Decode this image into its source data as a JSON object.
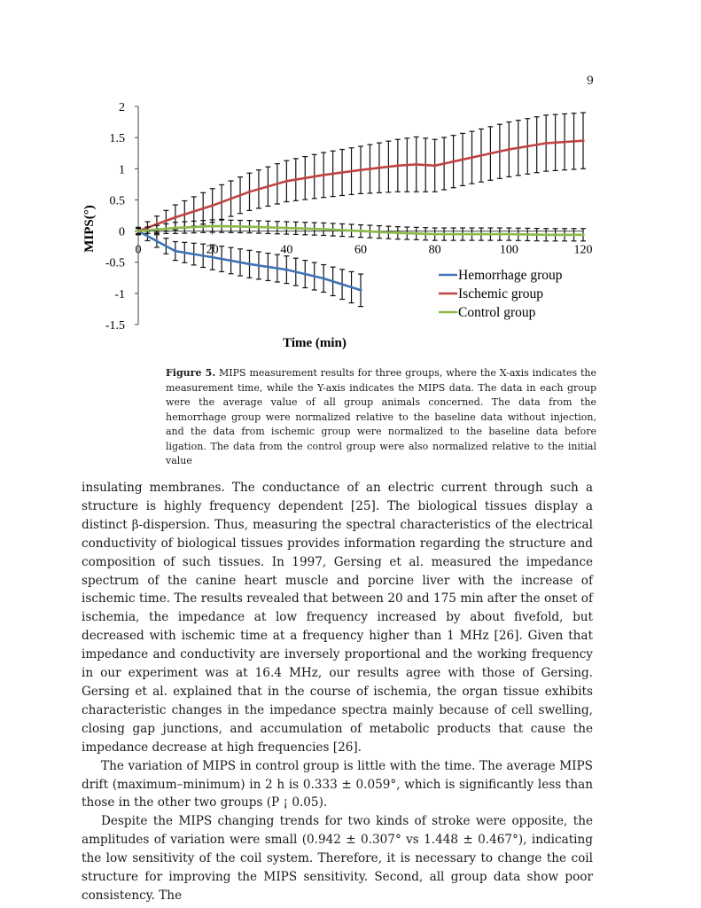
{
  "page_number": "9",
  "figure": {
    "caption_label": "Figure 5.",
    "caption_text": "MIPS measurement results for three groups, where the X-axis indicates the measurement time, while the Y-axis indicates the MIPS data. The data in each group were the average value of all group animals concerned. The data from the hemorrhage group were normalized relative to the baseline data without injection, and the data from ischemic group were normalized to the baseline data before ligation. The data from the control group were also normalized relative to the initial value"
  },
  "chart_data": {
    "type": "line",
    "xlabel": "Time (min)",
    "ylabel": "MIPS(°)",
    "xlim": [
      0,
      120
    ],
    "ylim": [
      -1.5,
      2
    ],
    "x_ticks": [
      "0",
      "20",
      "40",
      "60",
      "80",
      "100",
      "120"
    ],
    "y_ticks": [
      "2",
      "1.5",
      "1",
      "0.5",
      "0",
      "-0.5",
      "-1",
      "-1.5"
    ],
    "legend_position": "bottom-right",
    "series": [
      {
        "name": "Hemorrhage group",
        "color": "#3e73b5",
        "x": [
          0,
          10,
          20,
          30,
          40,
          50,
          60
        ],
        "y": [
          0,
          -0.32,
          -0.42,
          -0.53,
          -0.62,
          -0.76,
          -0.95
        ],
        "err": [
          0.05,
          0.15,
          0.2,
          0.22,
          0.22,
          0.22,
          0.26
        ]
      },
      {
        "name": "Ischemic group",
        "color": "#c04343",
        "x": [
          0,
          10,
          20,
          30,
          40,
          50,
          60,
          70,
          75,
          80,
          90,
          100,
          110,
          120
        ],
        "y": [
          0,
          0.22,
          0.41,
          0.63,
          0.8,
          0.9,
          0.98,
          1.05,
          1.07,
          1.05,
          1.18,
          1.31,
          1.41,
          1.45
        ],
        "err": [
          0.06,
          0.2,
          0.27,
          0.3,
          0.33,
          0.36,
          0.38,
          0.42,
          0.44,
          0.42,
          0.42,
          0.44,
          0.45,
          0.45
        ]
      },
      {
        "name": "Control group",
        "color": "#8db84a",
        "x": [
          0,
          10,
          20,
          30,
          40,
          50,
          60,
          70,
          80,
          90,
          100,
          110,
          120
        ],
        "y": [
          0,
          0.05,
          0.08,
          0.07,
          0.05,
          0.03,
          0.0,
          -0.03,
          -0.05,
          -0.05,
          -0.05,
          -0.06,
          -0.06
        ],
        "err": [
          0.04,
          0.09,
          0.1,
          0.1,
          0.1,
          0.1,
          0.1,
          0.1,
          0.1,
          0.1,
          0.1,
          0.1,
          0.1
        ]
      }
    ]
  },
  "body_paragraphs": [
    "insulating membranes. The conductance of an electric current through such a structure is highly frequency dependent [25]. The biological tissues display a distinct β-dispersion. Thus, measuring the spectral characteristics of the electrical conductivity of biological tissues provides information regarding the structure and composition of such tissues. In 1997, Gersing et al. measured the impedance spectrum of the canine heart muscle and porcine liver with the increase of ischemic time. The results revealed that between 20 and 175 min after the onset of ischemia, the impedance at low frequency increased by about fivefold, but decreased with ischemic time at a frequency higher than 1 MHz [26]. Given that impedance and conductivity are inversely proportional and the working frequency in our experiment was at 16.4 MHz, our results agree with those of Gersing. Gersing et al. explained that in the course of ischemia, the organ tissue exhibits characteristic changes in the impedance spectra mainly because of cell swelling, closing gap junctions, and accumulation of metabolic products that cause the impedance decrease at high frequencies [26].",
    "The variation of MIPS in control group is little with the time. The average MIPS drift (maximum–minimum) in 2 h is 0.333 ± 0.059°, which is significantly less than those in the other two groups (P ¡ 0.05).",
    "Despite the MIPS changing trends for two kinds of stroke were opposite, the amplitudes of variation were small (0.942 ± 0.307° vs 1.448 ± 0.467°), indicating the low sensitivity of the coil system. Therefore, it is necessary to change the coil structure for improving the MIPS sensitivity. Second, all group data show poor consistency. The"
  ]
}
